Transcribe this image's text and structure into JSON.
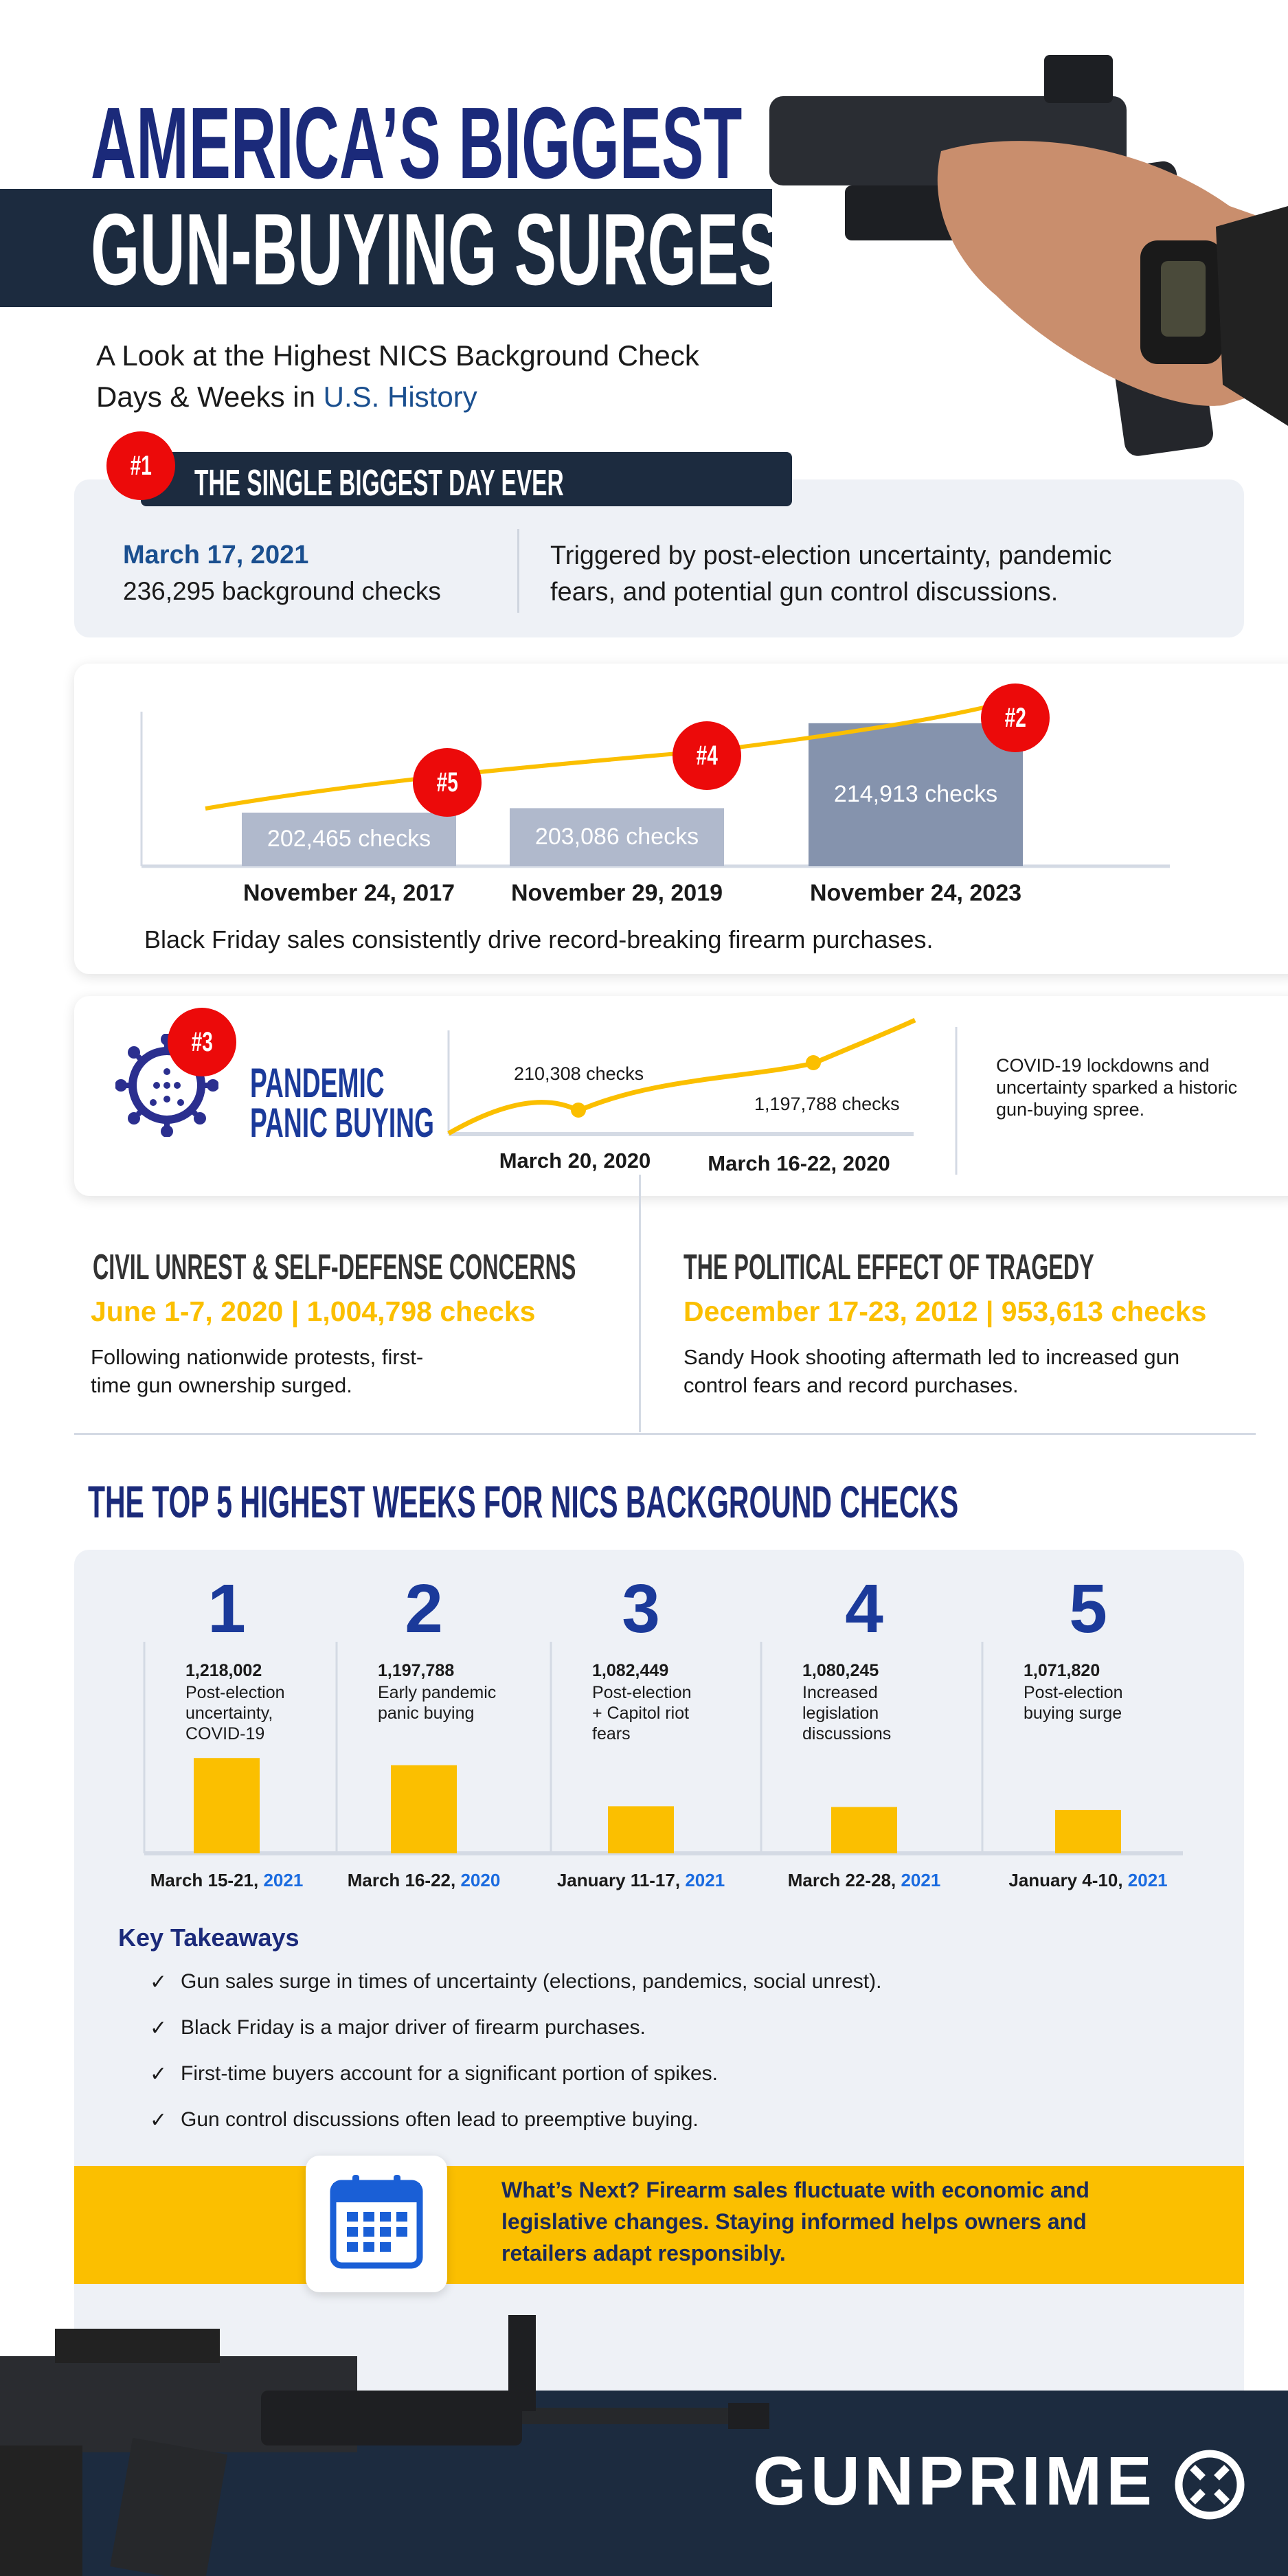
{
  "header": {
    "title_line1": "AMERICA’S BIGGEST",
    "title_line2": "GUN-BUYING SURGES",
    "subtitle_line1": "A Look at the Highest NICS Background Check",
    "subtitle_line2_prefix": "Days & Weeks in ",
    "subtitle_line2_highlight": "U.S. History"
  },
  "biggest_day": {
    "rank": "#1",
    "heading": "THE SINGLE BIGGEST DAY EVER",
    "date": "March 17, 2021",
    "checks": "236,295 background checks",
    "description_line1": "Triggered by post-election uncertainty, pandemic",
    "description_line2": "fears, and potential gun control discussions."
  },
  "black_friday": {
    "caption": "Black Friday sales consistently drive record-breaking firearm purchases.",
    "chart_data": {
      "type": "bar",
      "categories": [
        "November 24, 2017",
        "November 29, 2019",
        "November 24, 2023"
      ],
      "values": [
        202465,
        203086,
        214913
      ],
      "value_labels": [
        "202,465  checks",
        "203,086 checks",
        "214,913 checks"
      ],
      "ranks": [
        "#5",
        "#4",
        "#2"
      ],
      "trend_line": true
    }
  },
  "pandemic": {
    "rank": "#3",
    "title_line1": "PANDEMIC",
    "title_line2": "PANIC BUYING",
    "description_line1": "COVID-19 lockdowns and",
    "description_line2": "uncertainty sparked a historic",
    "description_line3": "gun-buying spree.",
    "chart_data": {
      "type": "line",
      "categories": [
        "March 20, 2020",
        "March 16-22, 2020"
      ],
      "value_labels": [
        "210,308 checks",
        "1,197,788 checks"
      ],
      "values": [
        210308,
        1197788
      ]
    }
  },
  "civil_unrest": {
    "heading": "CIVIL UNREST & SELF-DEFENSE CONCERNS",
    "stat": "June 1-7, 2020 | 1,004,798 checks",
    "body_line1": "Following nationwide protests, first-",
    "body_line2": "time gun ownership surged."
  },
  "tragedy": {
    "heading": "THE POLITICAL EFFECT OF TRAGEDY",
    "stat": "December 17-23, 2012 | 953,613 checks",
    "body_line1": "Sandy Hook shooting aftermath led to increased gun",
    "body_line2": "control fears and record purchases."
  },
  "top5": {
    "heading": "THE TOP 5 HIGHEST WEEKS FOR NICS BACKGROUND CHECKS",
    "chart_data": {
      "type": "bar",
      "ranks": [
        "1",
        "2",
        "3",
        "4",
        "5"
      ],
      "values": [
        1218002,
        1197788,
        1082449,
        1080245,
        1071820
      ],
      "value_labels": [
        "1,218,002",
        "1,197,788",
        "1,082,449",
        "1,080,245",
        "1,071,820"
      ],
      "reasons": [
        [
          "Post-election",
          "uncertainty,",
          "COVID-19"
        ],
        [
          "Early pandemic",
          "panic buying"
        ],
        [
          "Post-election",
          "+ Capitol riot",
          "fears"
        ],
        [
          "Increased",
          "legislation",
          "discussions"
        ],
        [
          "Post-election",
          "buying surge"
        ]
      ],
      "categories": [
        [
          "March 15-21, ",
          "2021"
        ],
        [
          "March 16-22, ",
          "2020"
        ],
        [
          "January 11-17, ",
          "2021"
        ],
        [
          "March 22-28, ",
          "2021"
        ],
        [
          "January 4-10, ",
          "2021"
        ]
      ]
    }
  },
  "takeaways": {
    "title": "Key Takeaways",
    "items": [
      "Gun sales surge in times of uncertainty (elections, pandemics, social unrest).",
      "Black Friday is a major driver of firearm purchases.",
      "First-time buyers account for a significant portion of spikes.",
      "Gun control discussions often lead to preemptive buying."
    ],
    "check_icon": "✓"
  },
  "whats_next": {
    "line1": "What’s Next? Firearm sales fluctuate with economic and",
    "line2": "legislative changes. Staying informed helps owners and",
    "line3": "retailers adapt responsibly.",
    "icon": "calendar-icon"
  },
  "footer": {
    "logo": "GUNPRIME"
  },
  "colors": {
    "navy": "#1b2a7a",
    "dark": "#1c2b3f",
    "yellow": "#fbbf00",
    "red": "#ec0a0a",
    "blue": "#1a6be0",
    "light_gray": "#eef1f6"
  }
}
